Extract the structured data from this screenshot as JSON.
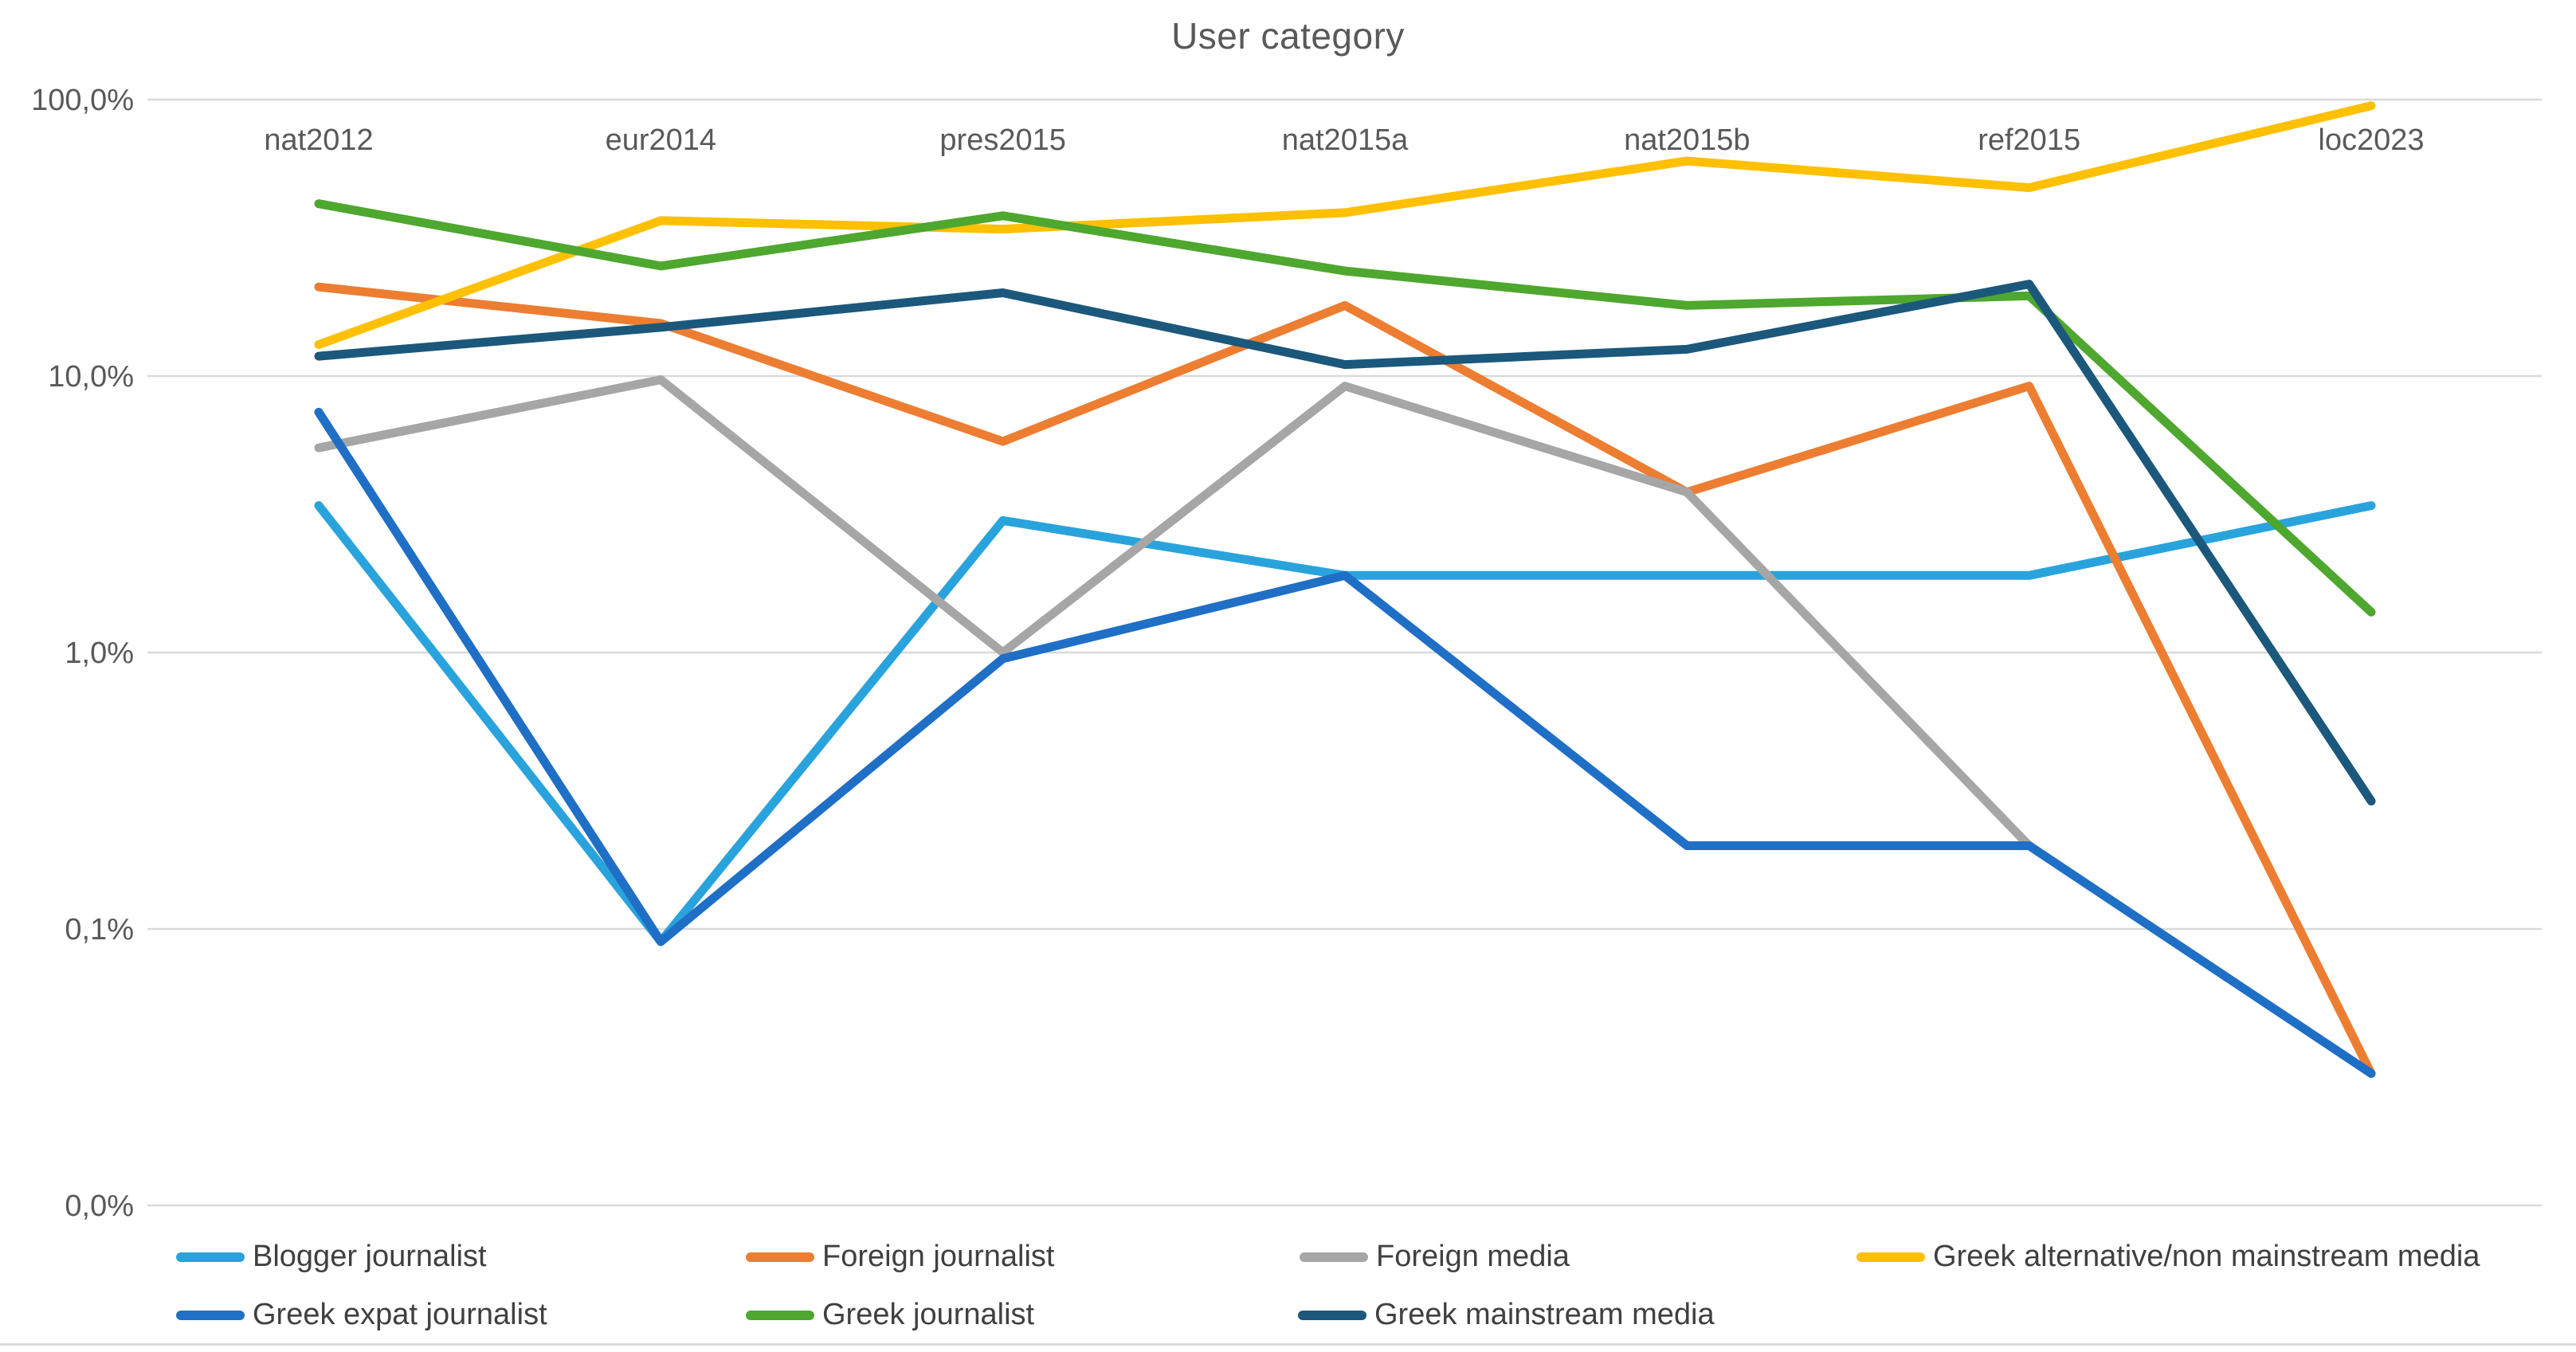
{
  "chart": {
    "title": "User category"
  },
  "chart_data": {
    "type": "line",
    "title": "User category",
    "categories": [
      "nat2012",
      "eur2014",
      "pres2015",
      "nat2015a",
      "nat2015b",
      "ref2015",
      "loc2023"
    ],
    "series": [
      {
        "name": "Blogger journalist",
        "color": "#29A3DC",
        "values": [
          3.4,
          0.09,
          3.0,
          1.9,
          1.9,
          1.9,
          3.4
        ]
      },
      {
        "name": "Foreign journalist",
        "color": "#ED7D31",
        "values": [
          21,
          15.5,
          5.8,
          18,
          3.8,
          9.2,
          0.03
        ]
      },
      {
        "name": "Foreign media",
        "color": "#A6A6A6",
        "values": [
          5.5,
          9.7,
          1.0,
          9.2,
          3.8,
          0.2,
          null
        ]
      },
      {
        "name": "Greek alternative/non mainstream media",
        "color": "#FFC000",
        "values": [
          13,
          36.5,
          34,
          39,
          60,
          48,
          95
        ]
      },
      {
        "name": "Greek expat journalist",
        "color": "#1F6FC6",
        "values": [
          7.4,
          0.09,
          0.95,
          1.9,
          0.2,
          0.2,
          0.03
        ]
      },
      {
        "name": "Greek journalist",
        "color": "#4EA72E",
        "values": [
          42,
          25,
          38,
          24,
          18,
          19.5,
          1.4
        ]
      },
      {
        "name": "Greek mainstream media",
        "color": "#1B587B",
        "values": [
          11.8,
          15,
          20,
          11,
          12.5,
          21.5,
          0.29
        ]
      }
    ],
    "y_axis": {
      "scale": "log",
      "range": [
        0.01,
        100
      ],
      "ticks": [
        {
          "label": "100,0%",
          "value": 100
        },
        {
          "label": "10,0%",
          "value": 10
        },
        {
          "label": "1,0%",
          "value": 1
        },
        {
          "label": "0,1%",
          "value": 0.1
        },
        {
          "label": "0,0%",
          "value": 0.01
        }
      ]
    },
    "x_axis": {
      "label_position": "inside-top"
    },
    "grid": "horizontal",
    "legend_position": "bottom",
    "colors": {
      "grid": "#D9D9D9",
      "tick_text": "#595959",
      "category_text": "#595959",
      "title_text": "#595959",
      "legend_text": "#404040"
    }
  }
}
